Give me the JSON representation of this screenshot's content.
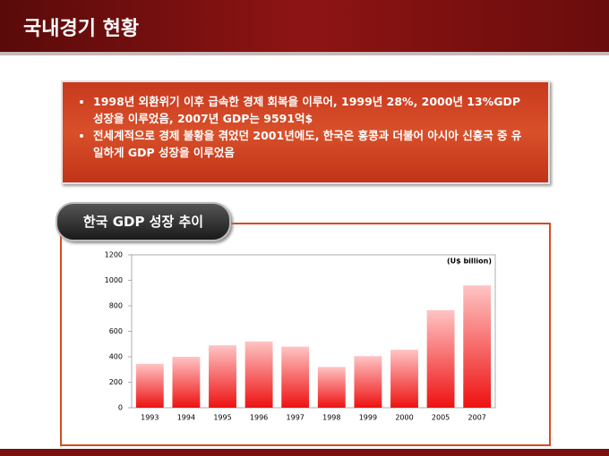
{
  "header": {
    "title": "국내경기 현황"
  },
  "bullets": [
    "1998년 외환위기 이후 급속한 경제 회복을 이루어, 1999년 28%, 2000년 13%GDP 성장을 이루었음, 2007년 GDP는 9591억$",
    "전세계적으로 경제 불황을 겪었던 2001년에도, 한국은 홍콩과 더불어 아시아 신흥국 중 유일하게 GDP 성장을 이루었음"
  ],
  "chart_data": {
    "type": "bar",
    "title": "한국 GDP 성장 추이",
    "annotation": "(U$ billion)",
    "categories": [
      "1993",
      "1994",
      "1995",
      "1996",
      "1997",
      "1998",
      "1999",
      "2000",
      "2005",
      "2007"
    ],
    "values": [
      345,
      400,
      490,
      520,
      480,
      320,
      405,
      455,
      765,
      960
    ],
    "color": "#ee1111",
    "ylim": [
      0,
      1200
    ],
    "yticks": [
      0,
      200,
      400,
      600,
      800,
      1000,
      1200
    ],
    "grid": false
  }
}
